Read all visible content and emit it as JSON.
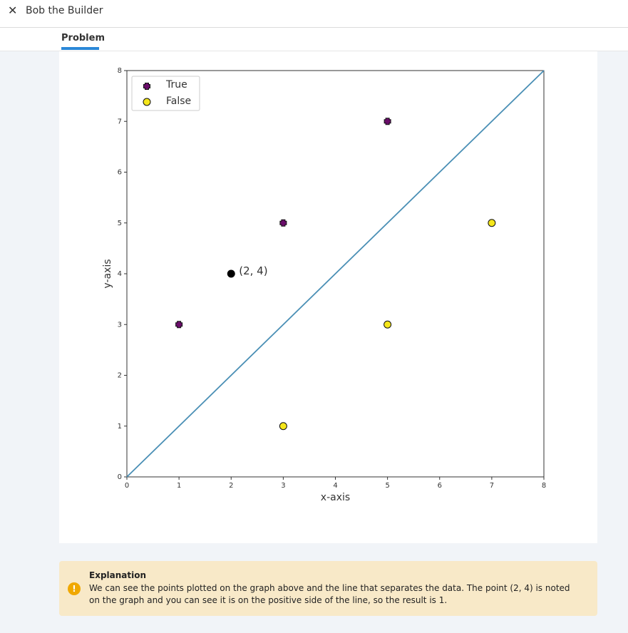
{
  "header": {
    "close_icon": "close-icon",
    "title": "Bob the Builder"
  },
  "tabs": [
    {
      "label": "Problem",
      "active": true
    }
  ],
  "chart_data": {
    "type": "scatter",
    "xlabel": "x-axis",
    "ylabel": "y-axis",
    "xlim": [
      0,
      8
    ],
    "ylim": [
      0,
      8
    ],
    "x_ticks": [
      "0",
      "1",
      "2",
      "3",
      "4",
      "5",
      "6",
      "7",
      "8"
    ],
    "y_ticks": [
      "0",
      "1",
      "2",
      "3",
      "4",
      "5",
      "6",
      "7",
      "8"
    ],
    "legend": {
      "placement": "top-left",
      "entries": [
        "True",
        "False"
      ]
    },
    "series": [
      {
        "name": "True",
        "marker": "plus",
        "color": "#6a0d6a",
        "points": [
          [
            1,
            3
          ],
          [
            3,
            5
          ],
          [
            5,
            7
          ]
        ]
      },
      {
        "name": "False",
        "marker": "circle",
        "color": "#f5e61a",
        "points": [
          [
            3,
            1
          ],
          [
            5,
            3
          ],
          [
            7,
            5
          ]
        ]
      }
    ],
    "line": {
      "points": [
        [
          0,
          0
        ],
        [
          8,
          8
        ]
      ],
      "color": "#4a8fb5"
    },
    "highlight": {
      "point": [
        2,
        4
      ],
      "label": "(2, 4)",
      "color": "#000000"
    }
  },
  "explanation": {
    "icon": "info-icon",
    "icon_glyph": "!",
    "title": "Explanation",
    "text": "We can see the points plotted on the graph above and the line that separates the data. The point (2, 4) is noted on the graph and you can see it is on the positive side of the line, so the result is 1."
  }
}
